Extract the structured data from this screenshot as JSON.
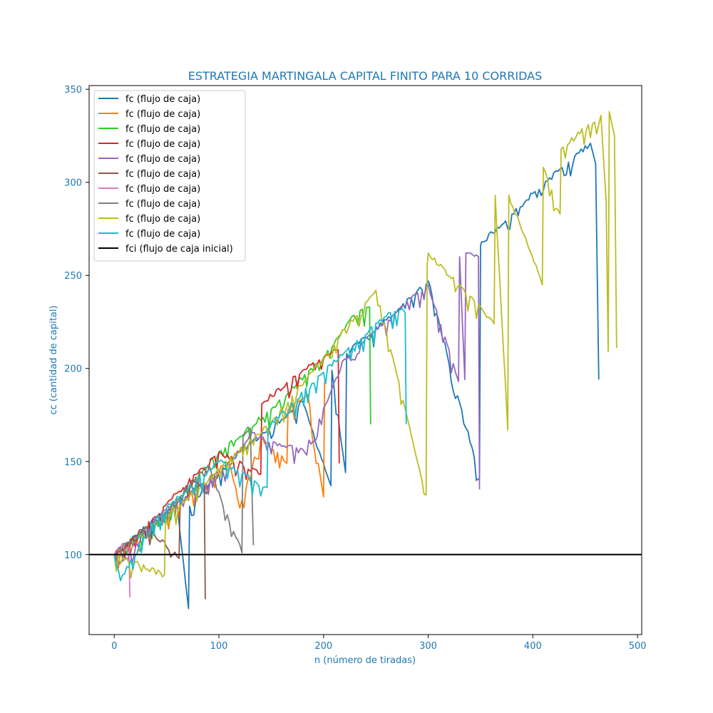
{
  "chart_data": {
    "type": "line",
    "title": "ESTRATEGIA MARTINGALA CAPITAL FINITO PARA 10 CORRIDAS",
    "xlabel": "n (número de tiradas)",
    "ylabel": "cc (cantidad de capital)",
    "xlim": [
      -24,
      504
    ],
    "ylim": [
      57,
      352
    ],
    "xticks": [
      0,
      100,
      200,
      300,
      400,
      500
    ],
    "yticks": [
      100,
      150,
      200,
      250,
      300,
      350
    ],
    "grid": false,
    "legend_position": "top-left",
    "colors": {
      "accent_text": "#1f77b4",
      "axes": "#000000"
    },
    "series": [
      {
        "name": "fc (flujo de caja)",
        "color": "#1f77b4",
        "x": [
          0,
          20,
          60,
          71,
          72,
          120,
          180,
          207,
          208,
          221,
          222,
          260,
          300,
          349,
          350,
          351,
          352,
          400,
          440,
          455,
          460,
          463
        ],
        "y": [
          100,
          110,
          128,
          71,
          126,
          155,
          182,
          137,
          199,
          144,
          208,
          226,
          247,
          141,
          266,
          268,
          268,
          294,
          314,
          321,
          310,
          194
        ]
      },
      {
        "name": "fc (flujo de caja)",
        "color": "#ff7f0e",
        "x": [
          0,
          40,
          80,
          110,
          120,
          140,
          165,
          166,
          185,
          200,
          201
        ],
        "y": [
          100,
          116,
          136,
          150,
          125,
          162,
          149,
          178,
          186,
          131,
          193
        ]
      },
      {
        "name": "fc (flujo de caja)",
        "color": "#2ccc2c",
        "x": [
          0,
          50,
          100,
          150,
          200,
          225,
          244,
          245
        ],
        "y": [
          100,
          122,
          155,
          178,
          206,
          226,
          233,
          170
        ]
      },
      {
        "name": "fc (flujo de caja)",
        "color": "#d62728",
        "x": [
          0,
          25,
          60,
          100,
          140,
          141,
          180,
          205,
          210,
          214,
          215
        ],
        "y": [
          100,
          112,
          133,
          155,
          143,
          181,
          199,
          207,
          210,
          210,
          149
        ]
      },
      {
        "name": "fc (flujo de caja)",
        "color": "#9467bd",
        "x": [
          0,
          5,
          40,
          110,
          130,
          182,
          220,
          300,
          329,
          330,
          335,
          336,
          340,
          348,
          349
        ],
        "y": [
          100,
          95,
          120,
          148,
          165,
          155,
          205,
          245,
          193,
          260,
          194,
          262,
          262,
          260,
          135
        ]
      },
      {
        "name": "fc (flujo de caja)",
        "color": "#8c564b",
        "x": [
          0,
          30,
          62,
          63,
          75,
          86,
          87
        ],
        "y": [
          100,
          115,
          98,
          131,
          140,
          137,
          76
        ]
      },
      {
        "name": "fc (flujo de caja)",
        "color": "#e377c2",
        "x": [
          0,
          8,
          14,
          15
        ],
        "y": [
          100,
          106,
          104,
          77
        ]
      },
      {
        "name": "fc (flujo de caja)",
        "color": "#7f7f7f",
        "x": [
          0,
          40,
          90,
          122,
          123,
          130,
          133
        ],
        "y": [
          100,
          118,
          148,
          101,
          163,
          168,
          105
        ]
      },
      {
        "name": "fc (flujo de caja)",
        "color": "#bcbd22",
        "x": [
          0,
          48,
          49,
          150,
          250,
          298,
          299,
          300,
          363,
          364,
          376,
          377,
          409,
          410,
          426,
          427,
          465,
          470,
          472,
          473,
          478,
          480
        ],
        "y": [
          100,
          89,
          120,
          171,
          242,
          132,
          255,
          262,
          224,
          293,
          167,
          293,
          245,
          308,
          283,
          318,
          336,
          290,
          209,
          338,
          325,
          211
        ]
      },
      {
        "name": "fc (flujo de caja)",
        "color": "#17becf",
        "x": [
          0,
          6,
          40,
          100,
          146,
          147,
          200,
          240,
          260,
          275,
          278,
          279
        ],
        "y": [
          100,
          86,
          120,
          150,
          136,
          168,
          198,
          218,
          228,
          232,
          230,
          170
        ]
      },
      {
        "name": "fci (flujo de caja inicial)",
        "color": "#000000",
        "x": [
          -24,
          504
        ],
        "y": [
          100,
          100
        ]
      }
    ]
  }
}
